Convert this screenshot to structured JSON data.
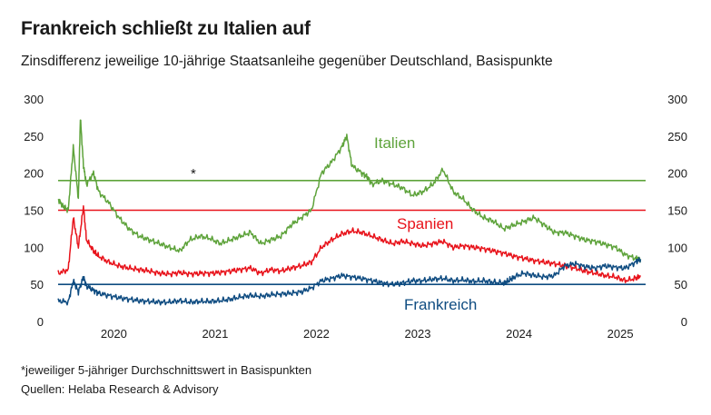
{
  "header": {
    "title": "Frankreich schließt zu Italien auf",
    "subtitle": "Zinsdifferenz jeweilige 10-jährige Staatsanleihe gegenüber Deutschland, Basispunkte"
  },
  "footer": {
    "footnote": "*jeweiliger 5-jähriger Durchschnittswert in Basispunkten",
    "source": "Quellen: Helaba Research & Advisory"
  },
  "chart_data": {
    "type": "line",
    "title": "Frankreich schließt zu Italien auf",
    "subtitle": "Zinsdifferenz jeweilige 10-jährige Staatsanleihe gegenüber Deutschland, Basispunkte",
    "xlabel": "",
    "ylabel": "",
    "xlim": [
      2019.5,
      2025.3
    ],
    "ylim": [
      0,
      300
    ],
    "x_ticks": [
      "2020",
      "2021",
      "2022",
      "2023",
      "2024",
      "2025"
    ],
    "y_ticks": [
      "0",
      "50",
      "100",
      "150",
      "200",
      "250",
      "300"
    ],
    "grid": false,
    "legend": "inline labels",
    "annotation": "*",
    "series": [
      {
        "name": "Italien",
        "color": "#5ea33b",
        "x": [
          2019.5,
          2019.55,
          2019.6,
          2019.65,
          2019.7,
          2019.72,
          2019.75,
          2019.78,
          2019.85,
          2019.9,
          2020.0,
          2020.1,
          2020.2,
          2020.3,
          2020.4,
          2020.5,
          2020.6,
          2020.7,
          2020.8,
          2020.9,
          2021.0,
          2021.1,
          2021.2,
          2021.3,
          2021.4,
          2021.5,
          2021.6,
          2021.7,
          2021.8,
          2021.9,
          2022.0,
          2022.1,
          2022.2,
          2022.3,
          2022.35,
          2022.4,
          2022.5,
          2022.55,
          2022.6,
          2022.7,
          2022.8,
          2022.9,
          2023.0,
          2023.1,
          2023.2,
          2023.3,
          2023.4,
          2023.5,
          2023.6,
          2023.7,
          2023.8,
          2023.9,
          2024.0,
          2024.1,
          2024.2,
          2024.3,
          2024.4,
          2024.5,
          2024.6,
          2024.7,
          2024.8,
          2024.9,
          2025.0,
          2025.1,
          2025.2,
          2025.25
        ],
        "values": [
          165,
          155,
          150,
          235,
          165,
          275,
          210,
          185,
          200,
          175,
          160,
          140,
          125,
          115,
          110,
          105,
          100,
          95,
          110,
          115,
          112,
          105,
          110,
          115,
          120,
          105,
          110,
          115,
          130,
          140,
          150,
          200,
          215,
          235,
          250,
          210,
          200,
          195,
          185,
          190,
          185,
          180,
          170,
          175,
          185,
          205,
          175,
          165,
          150,
          140,
          135,
          125,
          130,
          135,
          140,
          130,
          120,
          120,
          115,
          110,
          108,
          104,
          100,
          90,
          85,
          84
        ]
      },
      {
        "name": "Spanien",
        "color": "#e8131b",
        "x": [
          2019.5,
          2019.6,
          2019.65,
          2019.7,
          2019.75,
          2019.78,
          2019.85,
          2019.9,
          2020.0,
          2020.1,
          2020.2,
          2020.3,
          2020.4,
          2020.5,
          2020.6,
          2020.7,
          2020.8,
          2020.9,
          2021.0,
          2021.1,
          2021.2,
          2021.3,
          2021.4,
          2021.5,
          2021.6,
          2021.7,
          2021.8,
          2021.9,
          2022.0,
          2022.1,
          2022.2,
          2022.3,
          2022.4,
          2022.5,
          2022.6,
          2022.7,
          2022.8,
          2022.9,
          2023.0,
          2023.1,
          2023.2,
          2023.3,
          2023.4,
          2023.5,
          2023.6,
          2023.7,
          2023.8,
          2023.9,
          2024.0,
          2024.1,
          2024.2,
          2024.3,
          2024.4,
          2024.5,
          2024.6,
          2024.7,
          2024.8,
          2024.9,
          2025.0,
          2025.1,
          2025.2,
          2025.25
        ],
        "values": [
          65,
          70,
          140,
          100,
          155,
          110,
          95,
          88,
          80,
          75,
          72,
          70,
          68,
          65,
          64,
          66,
          64,
          65,
          65,
          66,
          68,
          70,
          72,
          65,
          70,
          68,
          72,
          75,
          80,
          100,
          110,
          118,
          122,
          120,
          115,
          110,
          105,
          108,
          105,
          102,
          105,
          108,
          100,
          102,
          100,
          98,
          95,
          92,
          88,
          85,
          82,
          80,
          78,
          75,
          72,
          68,
          65,
          62,
          60,
          55,
          58,
          62
        ]
      },
      {
        "name": "Frankreich",
        "color": "#0f4c81",
        "x": [
          2019.5,
          2019.6,
          2019.65,
          2019.7,
          2019.75,
          2019.78,
          2019.85,
          2019.9,
          2020.0,
          2020.1,
          2020.2,
          2020.3,
          2020.4,
          2020.5,
          2020.6,
          2020.7,
          2020.8,
          2020.9,
          2021.0,
          2021.1,
          2021.2,
          2021.3,
          2021.4,
          2021.5,
          2021.6,
          2021.7,
          2021.8,
          2021.9,
          2022.0,
          2022.1,
          2022.2,
          2022.3,
          2022.4,
          2022.5,
          2022.6,
          2022.7,
          2022.8,
          2022.9,
          2023.0,
          2023.1,
          2023.2,
          2023.3,
          2023.4,
          2023.5,
          2023.6,
          2023.7,
          2023.8,
          2023.9,
          2023.95,
          2024.0,
          2024.1,
          2024.2,
          2024.3,
          2024.4,
          2024.5,
          2024.6,
          2024.7,
          2024.8,
          2024.9,
          2025.0,
          2025.1,
          2025.2,
          2025.25
        ],
        "values": [
          28,
          26,
          55,
          40,
          60,
          48,
          42,
          38,
          35,
          32,
          30,
          28,
          27,
          26,
          26,
          28,
          26,
          27,
          27,
          28,
          30,
          33,
          35,
          34,
          36,
          37,
          38,
          40,
          45,
          55,
          58,
          62,
          60,
          58,
          55,
          52,
          50,
          52,
          55,
          55,
          57,
          58,
          55,
          56,
          54,
          55,
          53,
          52,
          55,
          60,
          65,
          62,
          60,
          62,
          75,
          78,
          74,
          72,
          75,
          73,
          72,
          80,
          84
        ]
      }
    ],
    "reference_lines": [
      {
        "value": 190,
        "color": "#5ea33b"
      },
      {
        "value": 150,
        "color": "#e8131b"
      },
      {
        "value": 50,
        "color": "#0f4c81"
      }
    ]
  }
}
